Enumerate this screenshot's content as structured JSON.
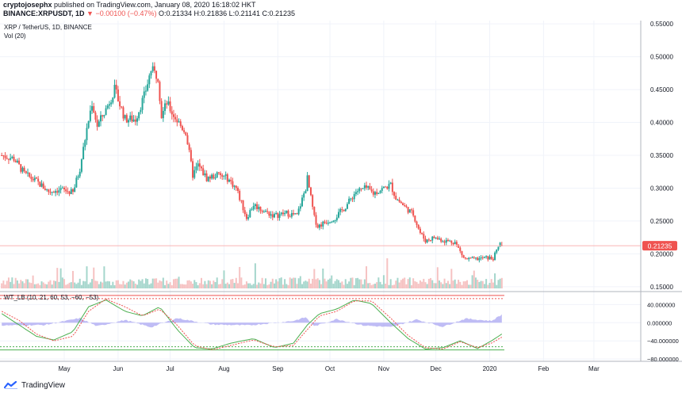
{
  "header": {
    "author": "cryptojosephx",
    "published_text": " published on TradingView.com, January 08, 2020 16:18:02 HKT",
    "symbol": "BINANCE:XRPUSDT, 1D",
    "change": "▼ −0.00100 (−0.47%)",
    "ohlc": "O:0.21334 H:0.21836 L:0.21141 C:0.21235"
  },
  "footer": {
    "logo_text": "TradingView",
    "logo_icon": "tradingview-logo-icon"
  },
  "colors": {
    "up": "#26a69a",
    "down": "#ef5350",
    "vol_up": "#a5d6cc",
    "vol_down": "#f6c2c2",
    "wt1": "#4caf50",
    "wt2": "#ef5350",
    "diff_fill": "#a9a6f2",
    "grid": "#f0f3fa",
    "axis_text": "#131722",
    "price_line": "#f9b4b4",
    "price_label_bg": "#ef5350",
    "ob_level": "#ef5350",
    "os_level": "#4caf50"
  },
  "chart_data": [
    {
      "type": "candlestick",
      "title": "XRP / TetherUS, 1D, BINANCE",
      "volume_label": "Vol (20)",
      "x_ticks": [
        "May",
        "Jun",
        "Jul",
        "Aug",
        "Sep",
        "Oct",
        "Nov",
        "Dec",
        "2020",
        "Feb",
        "Mar"
      ],
      "x_range": [
        "2019-03-25",
        "2020-03-28"
      ],
      "y_ticks": [
        "0.55000",
        "0.50000",
        "0.45000",
        "0.40000",
        "0.35000",
        "0.30000",
        "0.25000",
        "0.20000",
        "0.15000"
      ],
      "ylim": [
        0.145,
        0.555
      ],
      "last_price": "0.21235",
      "close_series": {
        "dates": [
          "2019-03-26",
          "2019-04-02",
          "2019-04-08",
          "2019-04-15",
          "2019-04-22",
          "2019-04-29",
          "2019-05-06",
          "2019-05-10",
          "2019-05-14",
          "2019-05-17",
          "2019-05-20",
          "2019-05-25",
          "2019-05-30",
          "2019-06-05",
          "2019-06-11",
          "2019-06-16",
          "2019-06-20",
          "2019-06-24",
          "2019-06-26",
          "2019-06-29",
          "2019-07-02",
          "2019-07-07",
          "2019-07-10",
          "2019-07-14",
          "2019-07-17",
          "2019-07-22",
          "2019-07-28",
          "2019-08-03",
          "2019-08-08",
          "2019-08-14",
          "2019-08-18",
          "2019-08-24",
          "2019-08-30",
          "2019-09-06",
          "2019-09-12",
          "2019-09-17",
          "2019-09-18",
          "2019-09-22",
          "2019-09-24",
          "2019-09-28",
          "2019-10-04",
          "2019-10-10",
          "2019-10-16",
          "2019-10-22",
          "2019-10-26",
          "2019-11-01",
          "2019-11-05",
          "2019-11-08",
          "2019-11-13",
          "2019-11-18",
          "2019-11-22",
          "2019-11-25",
          "2019-11-30",
          "2019-12-06",
          "2019-12-12",
          "2019-12-17",
          "2019-12-18",
          "2019-12-24",
          "2019-12-30",
          "2020-01-03",
          "2020-01-06",
          "2020-01-07",
          "2020-01-08"
        ],
        "values": [
          0.35,
          0.345,
          0.322,
          0.31,
          0.295,
          0.298,
          0.293,
          0.33,
          0.39,
          0.43,
          0.395,
          0.42,
          0.45,
          0.405,
          0.405,
          0.44,
          0.48,
          0.47,
          0.41,
          0.43,
          0.415,
          0.395,
          0.385,
          0.32,
          0.335,
          0.315,
          0.32,
          0.315,
          0.3,
          0.255,
          0.275,
          0.265,
          0.258,
          0.262,
          0.258,
          0.3,
          0.315,
          0.255,
          0.242,
          0.248,
          0.255,
          0.272,
          0.295,
          0.3,
          0.292,
          0.3,
          0.305,
          0.285,
          0.272,
          0.26,
          0.232,
          0.22,
          0.225,
          0.22,
          0.218,
          0.194,
          0.192,
          0.192,
          0.194,
          0.193,
          0.21,
          0.2175,
          0.21235
        ]
      }
    },
    {
      "type": "oscillator",
      "title": "WT_LB (10, 21, 60, 53, −60, −53)",
      "y_ticks": [
        "40.000000",
        "0.000000",
        "−40.000000",
        "−80.000000"
      ],
      "ylim": [
        -85,
        65
      ],
      "levels": [
        60,
        53,
        -60,
        -53
      ],
      "wt1": {
        "dates": [
          "2019-03-26",
          "2019-04-05",
          "2019-04-15",
          "2019-04-25",
          "2019-05-06",
          "2019-05-15",
          "2019-05-25",
          "2019-06-05",
          "2019-06-15",
          "2019-06-25",
          "2019-07-05",
          "2019-07-15",
          "2019-07-25",
          "2019-08-05",
          "2019-08-18",
          "2019-08-30",
          "2019-09-10",
          "2019-09-18",
          "2019-09-25",
          "2019-10-05",
          "2019-10-15",
          "2019-10-25",
          "2019-11-05",
          "2019-11-15",
          "2019-11-25",
          "2019-12-05",
          "2019-12-15",
          "2019-12-25",
          "2020-01-02",
          "2020-01-08"
        ],
        "values": [
          20,
          -5,
          -30,
          -38,
          -20,
          35,
          50,
          25,
          15,
          35,
          -15,
          -55,
          -58,
          -45,
          -35,
          -55,
          -45,
          -5,
          20,
          30,
          50,
          42,
          0,
          -35,
          -58,
          -55,
          -40,
          -57,
          -40,
          -25
        ]
      },
      "wt2": {
        "dates": [
          "2019-03-26",
          "2019-04-05",
          "2019-04-15",
          "2019-04-25",
          "2019-05-06",
          "2019-05-15",
          "2019-05-25",
          "2019-06-05",
          "2019-06-15",
          "2019-06-25",
          "2019-07-05",
          "2019-07-15",
          "2019-07-25",
          "2019-08-05",
          "2019-08-18",
          "2019-08-30",
          "2019-09-10",
          "2019-09-18",
          "2019-09-25",
          "2019-10-05",
          "2019-10-15",
          "2019-10-25",
          "2019-11-05",
          "2019-11-15",
          "2019-11-25",
          "2019-12-05",
          "2019-12-15",
          "2019-12-25",
          "2020-01-02",
          "2020-01-08"
        ],
        "values": [
          25,
          5,
          -25,
          -40,
          -30,
          25,
          52,
          35,
          15,
          30,
          -5,
          -50,
          -60,
          -50,
          -38,
          -53,
          -50,
          -15,
          15,
          25,
          48,
          48,
          10,
          -28,
          -55,
          -58,
          -42,
          -55,
          -45,
          -32
        ]
      },
      "diff": {
        "dates": [
          "2019-03-26",
          "2019-04-20",
          "2019-05-10",
          "2019-05-20",
          "2019-06-05",
          "2019-06-20",
          "2019-07-05",
          "2019-07-25",
          "2019-08-15",
          "2019-09-10",
          "2019-09-17",
          "2019-09-22",
          "2019-10-05",
          "2019-10-20",
          "2019-11-05",
          "2019-11-20",
          "2019-12-05",
          "2019-12-18",
          "2020-01-02",
          "2020-01-08"
        ],
        "values": [
          -6,
          -5,
          10,
          -8,
          6,
          -10,
          10,
          -4,
          -6,
          4,
          12,
          -8,
          8,
          -6,
          -10,
          7,
          -9,
          9,
          4,
          18
        ]
      }
    }
  ]
}
